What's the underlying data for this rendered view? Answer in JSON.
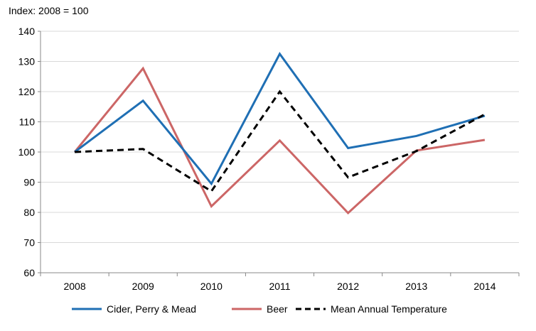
{
  "chart_data": {
    "type": "line",
    "ylabel": "Index: 2008 = 100",
    "ylim": [
      60,
      140
    ],
    "yticks": [
      60,
      70,
      80,
      90,
      100,
      110,
      120,
      130,
      140
    ],
    "grid": true,
    "legend_position": "bottom",
    "categories": [
      "2008",
      "2009",
      "2010",
      "2011",
      "2012",
      "2013",
      "2014"
    ],
    "series": [
      {
        "name": "Cider, Perry & Mead",
        "color": "#1f6fb4",
        "dash": "solid",
        "values": [
          100,
          117,
          89.5,
          132.5,
          101.3,
          105.3,
          112
        ]
      },
      {
        "name": "Beer",
        "color": "#cc6666",
        "dash": "solid",
        "values": [
          100,
          127.7,
          82,
          103.8,
          79.8,
          100.5,
          104
        ]
      },
      {
        "name": "Mean Annual Temperature",
        "color": "#000000",
        "dash": "dashed",
        "values": [
          100,
          101,
          87,
          120,
          91.6,
          100.3,
          112.5
        ]
      }
    ]
  }
}
